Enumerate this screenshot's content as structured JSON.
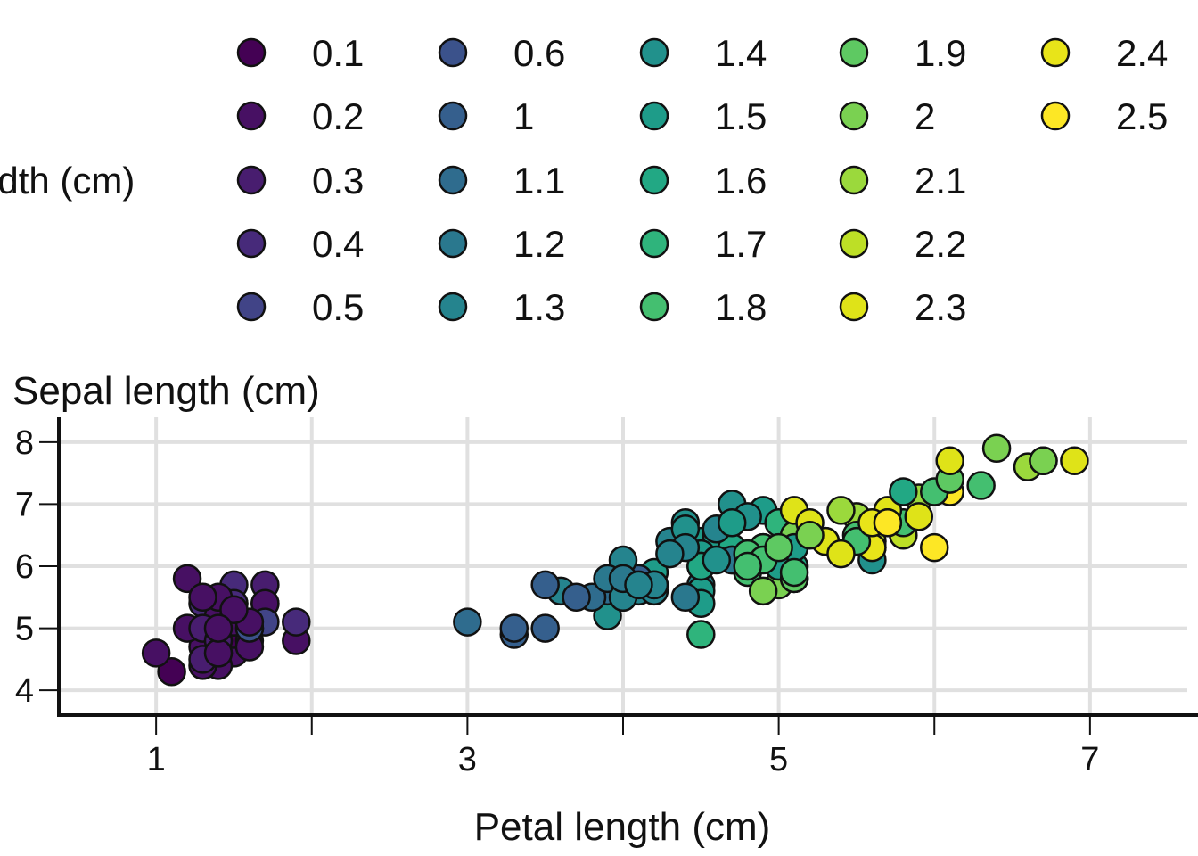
{
  "chart_data": {
    "type": "scatter",
    "title": "",
    "xlabel": "Petal length (cm)",
    "ylabel": "Sepal length (cm)",
    "legend_title": "idth (cm)",
    "legend_placement": "top",
    "xlim": [
      0.375,
      7.625
    ],
    "ylim": [
      3.6,
      8.4
    ],
    "x_ticks": [
      1,
      3,
      5,
      7
    ],
    "y_ticks": [
      4,
      5,
      6,
      7,
      8
    ],
    "grid": true,
    "color_scale": "viridis",
    "legend_values": [
      "0.1",
      "0.2",
      "0.3",
      "0.4",
      "0.5",
      "0.6",
      "1",
      "1.1",
      "1.2",
      "1.3",
      "1.4",
      "1.5",
      "1.6",
      "1.7",
      "1.8",
      "1.9",
      "2",
      "2.1",
      "2.2",
      "2.3",
      "2.4",
      "2.5"
    ],
    "legend_colors": [
      "#440154",
      "#471063",
      "#481d6f",
      "#472a7a",
      "#414487",
      "#3b528b",
      "#355f8d",
      "#2f6c8e",
      "#2a788e",
      "#25848e",
      "#21918c",
      "#1e9c89",
      "#22a884",
      "#2fb47c",
      "#44bf70",
      "#5ec962",
      "#7ad151",
      "#9bd93c",
      "#bddf26",
      "#dfe318",
      "#e8e419",
      "#fde725"
    ],
    "points": [
      {
        "x": 1.4,
        "y": 5.1,
        "c": "0.2"
      },
      {
        "x": 1.4,
        "y": 4.9,
        "c": "0.2"
      },
      {
        "x": 1.3,
        "y": 4.7,
        "c": "0.2"
      },
      {
        "x": 1.5,
        "y": 4.6,
        "c": "0.2"
      },
      {
        "x": 1.4,
        "y": 5.0,
        "c": "0.2"
      },
      {
        "x": 1.7,
        "y": 5.4,
        "c": "0.4"
      },
      {
        "x": 1.4,
        "y": 4.6,
        "c": "0.3"
      },
      {
        "x": 1.5,
        "y": 5.0,
        "c": "0.2"
      },
      {
        "x": 1.4,
        "y": 4.4,
        "c": "0.2"
      },
      {
        "x": 1.5,
        "y": 4.9,
        "c": "0.1"
      },
      {
        "x": 1.5,
        "y": 5.4,
        "c": "0.2"
      },
      {
        "x": 1.6,
        "y": 4.8,
        "c": "0.2"
      },
      {
        "x": 1.4,
        "y": 4.8,
        "c": "0.1"
      },
      {
        "x": 1.1,
        "y": 4.3,
        "c": "0.1"
      },
      {
        "x": 1.2,
        "y": 5.8,
        "c": "0.2"
      },
      {
        "x": 1.5,
        "y": 5.7,
        "c": "0.4"
      },
      {
        "x": 1.3,
        "y": 5.4,
        "c": "0.4"
      },
      {
        "x": 1.4,
        "y": 5.1,
        "c": "0.3"
      },
      {
        "x": 1.7,
        "y": 5.7,
        "c": "0.3"
      },
      {
        "x": 1.5,
        "y": 5.1,
        "c": "0.3"
      },
      {
        "x": 1.7,
        "y": 5.4,
        "c": "0.2"
      },
      {
        "x": 1.5,
        "y": 5.1,
        "c": "0.4"
      },
      {
        "x": 1.0,
        "y": 4.6,
        "c": "0.2"
      },
      {
        "x": 1.7,
        "y": 5.1,
        "c": "0.5"
      },
      {
        "x": 1.9,
        "y": 4.8,
        "c": "0.2"
      },
      {
        "x": 1.6,
        "y": 5.0,
        "c": "0.2"
      },
      {
        "x": 1.6,
        "y": 5.0,
        "c": "0.4"
      },
      {
        "x": 1.5,
        "y": 5.2,
        "c": "0.2"
      },
      {
        "x": 1.4,
        "y": 5.2,
        "c": "0.2"
      },
      {
        "x": 1.6,
        "y": 4.7,
        "c": "0.2"
      },
      {
        "x": 1.5,
        "y": 5.4,
        "c": "0.4"
      },
      {
        "x": 1.5,
        "y": 5.2,
        "c": "0.1"
      },
      {
        "x": 1.4,
        "y": 5.5,
        "c": "0.2"
      },
      {
        "x": 1.2,
        "y": 5.0,
        "c": "0.2"
      },
      {
        "x": 1.3,
        "y": 5.5,
        "c": "0.2"
      },
      {
        "x": 1.3,
        "y": 4.4,
        "c": "0.2"
      },
      {
        "x": 1.5,
        "y": 5.1,
        "c": "0.2"
      },
      {
        "x": 1.3,
        "y": 5.0,
        "c": "0.3"
      },
      {
        "x": 1.3,
        "y": 4.5,
        "c": "0.3"
      },
      {
        "x": 1.6,
        "y": 5.0,
        "c": "0.6"
      },
      {
        "x": 1.9,
        "y": 5.1,
        "c": "0.4"
      },
      {
        "x": 1.4,
        "y": 4.8,
        "c": "0.3"
      },
      {
        "x": 1.6,
        "y": 5.1,
        "c": "0.2"
      },
      {
        "x": 1.4,
        "y": 4.6,
        "c": "0.2"
      },
      {
        "x": 1.5,
        "y": 5.3,
        "c": "0.2"
      },
      {
        "x": 1.4,
        "y": 5.0,
        "c": "0.2"
      },
      {
        "x": 4.7,
        "y": 7.0,
        "c": "1.4"
      },
      {
        "x": 4.5,
        "y": 6.4,
        "c": "1.5"
      },
      {
        "x": 4.9,
        "y": 6.9,
        "c": "1.5"
      },
      {
        "x": 4.0,
        "y": 5.5,
        "c": "1.3"
      },
      {
        "x": 4.6,
        "y": 6.5,
        "c": "1.5"
      },
      {
        "x": 4.5,
        "y": 5.7,
        "c": "1.3"
      },
      {
        "x": 4.7,
        "y": 6.3,
        "c": "1.6"
      },
      {
        "x": 3.3,
        "y": 4.9,
        "c": "1"
      },
      {
        "x": 4.6,
        "y": 6.6,
        "c": "1.3"
      },
      {
        "x": 3.9,
        "y": 5.2,
        "c": "1.4"
      },
      {
        "x": 3.5,
        "y": 5.0,
        "c": "1"
      },
      {
        "x": 4.2,
        "y": 5.9,
        "c": "1.5"
      },
      {
        "x": 4.0,
        "y": 6.0,
        "c": "1"
      },
      {
        "x": 4.7,
        "y": 6.1,
        "c": "1.4"
      },
      {
        "x": 3.6,
        "y": 5.6,
        "c": "1.3"
      },
      {
        "x": 4.4,
        "y": 6.7,
        "c": "1.4"
      },
      {
        "x": 4.5,
        "y": 5.6,
        "c": "1.5"
      },
      {
        "x": 4.1,
        "y": 5.8,
        "c": "1"
      },
      {
        "x": 4.5,
        "y": 6.2,
        "c": "1.5"
      },
      {
        "x": 3.9,
        "y": 5.6,
        "c": "1.1"
      },
      {
        "x": 4.8,
        "y": 5.9,
        "c": "1.8"
      },
      {
        "x": 4.0,
        "y": 6.1,
        "c": "1.3"
      },
      {
        "x": 4.9,
        "y": 6.3,
        "c": "1.5"
      },
      {
        "x": 4.7,
        "y": 6.1,
        "c": "1.2"
      },
      {
        "x": 4.3,
        "y": 6.4,
        "c": "1.3"
      },
      {
        "x": 4.4,
        "y": 6.6,
        "c": "1.4"
      },
      {
        "x": 4.8,
        "y": 6.8,
        "c": "1.4"
      },
      {
        "x": 5.0,
        "y": 6.7,
        "c": "1.7"
      },
      {
        "x": 4.5,
        "y": 6.0,
        "c": "1.5"
      },
      {
        "x": 3.5,
        "y": 5.7,
        "c": "1"
      },
      {
        "x": 3.8,
        "y": 5.5,
        "c": "1.1"
      },
      {
        "x": 3.7,
        "y": 5.5,
        "c": "1"
      },
      {
        "x": 3.9,
        "y": 5.8,
        "c": "1.2"
      },
      {
        "x": 5.1,
        "y": 6.0,
        "c": "1.6"
      },
      {
        "x": 4.5,
        "y": 5.4,
        "c": "1.5"
      },
      {
        "x": 4.5,
        "y": 6.0,
        "c": "1.6"
      },
      {
        "x": 4.7,
        "y": 6.7,
        "c": "1.5"
      },
      {
        "x": 4.4,
        "y": 6.3,
        "c": "1.3"
      },
      {
        "x": 4.1,
        "y": 5.6,
        "c": "1.3"
      },
      {
        "x": 4.0,
        "y": 5.5,
        "c": "1.3"
      },
      {
        "x": 4.4,
        "y": 5.5,
        "c": "1.2"
      },
      {
        "x": 4.6,
        "y": 6.1,
        "c": "1.4"
      },
      {
        "x": 4.0,
        "y": 5.8,
        "c": "1.2"
      },
      {
        "x": 3.3,
        "y": 5.0,
        "c": "1"
      },
      {
        "x": 4.2,
        "y": 5.6,
        "c": "1.3"
      },
      {
        "x": 4.2,
        "y": 5.7,
        "c": "1.2"
      },
      {
        "x": 4.2,
        "y": 5.7,
        "c": "1.3"
      },
      {
        "x": 4.3,
        "y": 6.2,
        "c": "1.3"
      },
      {
        "x": 3.0,
        "y": 5.1,
        "c": "1.1"
      },
      {
        "x": 4.1,
        "y": 5.7,
        "c": "1.3"
      },
      {
        "x": 6.0,
        "y": 6.3,
        "c": "2.5"
      },
      {
        "x": 5.1,
        "y": 5.8,
        "c": "1.9"
      },
      {
        "x": 5.9,
        "y": 7.1,
        "c": "2.1"
      },
      {
        "x": 5.6,
        "y": 6.3,
        "c": "1.8"
      },
      {
        "x": 5.8,
        "y": 6.5,
        "c": "2.2"
      },
      {
        "x": 6.6,
        "y": 7.6,
        "c": "2.1"
      },
      {
        "x": 4.5,
        "y": 4.9,
        "c": "1.7"
      },
      {
        "x": 6.3,
        "y": 7.3,
        "c": "1.8"
      },
      {
        "x": 5.8,
        "y": 6.7,
        "c": "1.8"
      },
      {
        "x": 6.1,
        "y": 7.2,
        "c": "2.5"
      },
      {
        "x": 5.1,
        "y": 6.5,
        "c": "2"
      },
      {
        "x": 5.3,
        "y": 6.4,
        "c": "1.9"
      },
      {
        "x": 5.5,
        "y": 6.8,
        "c": "2.1"
      },
      {
        "x": 5.0,
        "y": 5.7,
        "c": "2"
      },
      {
        "x": 5.1,
        "y": 5.8,
        "c": "2.4"
      },
      {
        "x": 5.3,
        "y": 6.4,
        "c": "2.3"
      },
      {
        "x": 5.5,
        "y": 6.5,
        "c": "1.8"
      },
      {
        "x": 6.7,
        "y": 7.7,
        "c": "2.2"
      },
      {
        "x": 6.9,
        "y": 7.7,
        "c": "2.3"
      },
      {
        "x": 5.0,
        "y": 6.0,
        "c": "1.5"
      },
      {
        "x": 5.7,
        "y": 6.9,
        "c": "2.3"
      },
      {
        "x": 4.9,
        "y": 5.6,
        "c": "2"
      },
      {
        "x": 6.7,
        "y": 7.7,
        "c": "2"
      },
      {
        "x": 4.9,
        "y": 6.3,
        "c": "1.8"
      },
      {
        "x": 5.7,
        "y": 6.7,
        "c": "2.1"
      },
      {
        "x": 6.0,
        "y": 7.2,
        "c": "1.8"
      },
      {
        "x": 4.8,
        "y": 6.2,
        "c": "1.8"
      },
      {
        "x": 4.9,
        "y": 6.1,
        "c": "1.8"
      },
      {
        "x": 5.6,
        "y": 6.4,
        "c": "2.1"
      },
      {
        "x": 5.8,
        "y": 7.2,
        "c": "1.6"
      },
      {
        "x": 6.1,
        "y": 7.4,
        "c": "1.9"
      },
      {
        "x": 6.4,
        "y": 7.9,
        "c": "2"
      },
      {
        "x": 5.6,
        "y": 6.4,
        "c": "2.2"
      },
      {
        "x": 5.1,
        "y": 6.3,
        "c": "1.5"
      },
      {
        "x": 5.6,
        "y": 6.1,
        "c": "1.4"
      },
      {
        "x": 6.1,
        "y": 7.7,
        "c": "2.3"
      },
      {
        "x": 5.6,
        "y": 6.3,
        "c": "2.4"
      },
      {
        "x": 5.5,
        "y": 6.4,
        "c": "1.8"
      },
      {
        "x": 4.8,
        "y": 6.0,
        "c": "1.8"
      },
      {
        "x": 5.4,
        "y": 6.9,
        "c": "2.1"
      },
      {
        "x": 5.6,
        "y": 6.7,
        "c": "2.4"
      },
      {
        "x": 5.1,
        "y": 6.9,
        "c": "2.3"
      },
      {
        "x": 5.1,
        "y": 5.8,
        "c": "1.9"
      },
      {
        "x": 5.9,
        "y": 6.8,
        "c": "2.3"
      },
      {
        "x": 5.7,
        "y": 6.7,
        "c": "2.5"
      },
      {
        "x": 5.2,
        "y": 6.7,
        "c": "2.3"
      },
      {
        "x": 5.0,
        "y": 6.3,
        "c": "1.9"
      },
      {
        "x": 5.2,
        "y": 6.5,
        "c": "2"
      },
      {
        "x": 5.4,
        "y": 6.2,
        "c": "2.3"
      },
      {
        "x": 5.1,
        "y": 5.9,
        "c": "1.8"
      }
    ]
  }
}
